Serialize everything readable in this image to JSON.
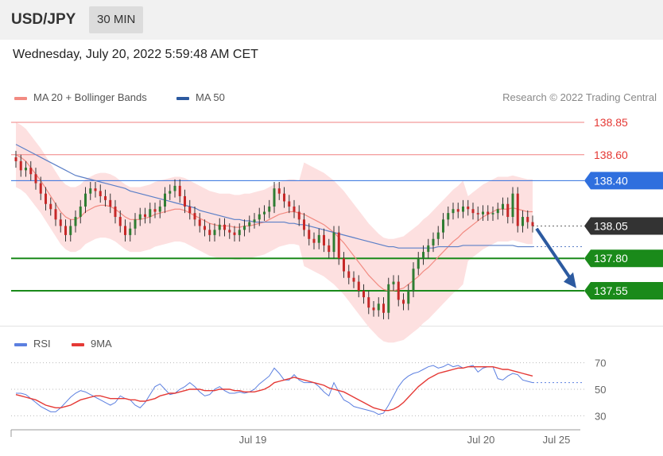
{
  "header": {
    "symbol": "USD/JPY",
    "timeframe": "30 MIN"
  },
  "timestamp": "Wednesday, July 20, 2022 5:59:48 AM CET",
  "legend": {
    "ma20": "MA 20 + Bollinger Bands",
    "ma50": "MA 50",
    "rsi": "RSI",
    "rsi_ma": "9MA"
  },
  "credit": "Research © 2022 Trading Central",
  "colors": {
    "resistance": "#f08080",
    "pivot": "#2f6fde",
    "support": "#1a8a1a",
    "last": "#333333",
    "bull": "#2e7d32",
    "bear": "#c62828",
    "ma20": "#f28b82",
    "ma50": "#5b7fc7",
    "band": "#fde0e0",
    "arrow": "#2c5aa0"
  },
  "chart_data": [
    {
      "type": "candlestick",
      "title": "USD/JPY 30 MIN",
      "ylim": [
        137.2,
        138.95
      ],
      "x_ticks": [
        "Jul 19",
        "Jul 20",
        "Jul 25"
      ],
      "levels": [
        {
          "value": 138.85,
          "label": "138.85",
          "kind": "resistance"
        },
        {
          "value": 138.6,
          "label": "138.60",
          "kind": "resistance"
        },
        {
          "value": 138.4,
          "label": "138.40",
          "kind": "pivot"
        },
        {
          "value": 138.05,
          "label": "138.05",
          "kind": "last"
        },
        {
          "value": 137.8,
          "label": "137.80",
          "kind": "support"
        },
        {
          "value": 137.55,
          "label": "137.55",
          "kind": "support"
        }
      ],
      "close": [
        138.55,
        138.48,
        138.5,
        138.45,
        138.38,
        138.3,
        138.22,
        138.18,
        138.1,
        138.05,
        137.98,
        138.05,
        138.12,
        138.2,
        138.3,
        138.34,
        138.32,
        138.28,
        138.25,
        138.2,
        138.12,
        138.05,
        137.98,
        138.03,
        138.1,
        138.14,
        138.12,
        138.18,
        138.16,
        138.2,
        138.3,
        138.32,
        138.36,
        138.28,
        138.2,
        138.15,
        138.1,
        138.05,
        138.02,
        137.98,
        138.02,
        138.06,
        138.02,
        138.0,
        137.98,
        138.02,
        138.05,
        138.08,
        138.1,
        138.14,
        138.16,
        138.2,
        138.34,
        138.3,
        138.24,
        138.2,
        138.16,
        138.1,
        138.02,
        137.95,
        137.92,
        137.98,
        137.9,
        137.85,
        138.0,
        137.8,
        137.7,
        137.65,
        137.62,
        137.55,
        137.5,
        137.42,
        137.4,
        137.45,
        137.38,
        137.6,
        137.62,
        137.48,
        137.45,
        137.55,
        137.72,
        137.8,
        137.85,
        137.9,
        137.95,
        138.0,
        138.1,
        138.15,
        138.18,
        138.16,
        138.2,
        138.18,
        138.15,
        138.14,
        138.16,
        138.14,
        138.15,
        138.18,
        138.22,
        138.12,
        138.3,
        138.05,
        138.12,
        138.08,
        138.05
      ],
      "ma20": [
        138.6,
        138.58,
        138.55,
        138.5,
        138.45,
        138.4,
        138.34,
        138.28,
        138.22,
        138.16,
        138.12,
        138.1,
        138.1,
        138.12,
        138.16,
        138.18,
        138.2,
        138.21,
        138.21,
        138.2,
        138.18,
        138.15,
        138.12,
        138.1,
        138.1,
        138.1,
        138.11,
        138.12,
        138.14,
        138.15,
        138.16,
        138.17,
        138.18,
        138.18,
        138.17,
        138.15,
        138.13,
        138.11,
        138.09,
        138.07,
        138.06,
        138.05,
        138.05,
        138.05,
        138.04,
        138.04,
        138.05,
        138.05,
        138.06,
        138.07,
        138.08,
        138.1,
        138.12,
        138.14,
        138.15,
        138.16,
        138.16,
        138.15,
        138.14,
        138.12,
        138.1,
        138.08,
        138.06,
        138.03,
        138.0,
        137.96,
        137.92,
        137.87,
        137.82,
        137.77,
        137.72,
        137.67,
        137.63,
        137.59,
        137.56,
        137.55,
        137.55,
        137.56,
        137.57,
        137.6,
        137.63,
        137.66,
        137.7,
        137.73,
        137.77,
        137.81,
        137.85,
        137.89,
        137.93,
        137.96,
        138.0,
        138.03,
        138.06,
        138.09,
        138.12,
        138.14,
        138.16,
        138.18,
        138.18,
        138.18,
        138.19,
        138.18,
        138.17,
        138.16,
        138.16
      ],
      "ma50": [
        138.68,
        138.66,
        138.64,
        138.62,
        138.6,
        138.58,
        138.56,
        138.54,
        138.52,
        138.5,
        138.48,
        138.46,
        138.44,
        138.43,
        138.42,
        138.41,
        138.4,
        138.39,
        138.38,
        138.37,
        138.36,
        138.35,
        138.34,
        138.32,
        138.31,
        138.3,
        138.29,
        138.28,
        138.27,
        138.26,
        138.25,
        138.24,
        138.23,
        138.22,
        138.21,
        138.2,
        138.19,
        138.17,
        138.16,
        138.15,
        138.14,
        138.13,
        138.12,
        138.11,
        138.1,
        138.1,
        138.09,
        138.09,
        138.08,
        138.08,
        138.08,
        138.08,
        138.08,
        138.08,
        138.08,
        138.07,
        138.07,
        138.06,
        138.06,
        138.05,
        138.04,
        138.03,
        138.02,
        138.01,
        138.0,
        137.99,
        137.98,
        137.97,
        137.96,
        137.95,
        137.94,
        137.93,
        137.92,
        137.91,
        137.9,
        137.89,
        137.89,
        137.88,
        137.88,
        137.88,
        137.88,
        137.88,
        137.88,
        137.88,
        137.88,
        137.89,
        137.89,
        137.89,
        137.89,
        137.89,
        137.9,
        137.9,
        137.9,
        137.9,
        137.9,
        137.9,
        137.9,
        137.9,
        137.9,
        137.9,
        137.9,
        137.89,
        137.89,
        137.89,
        137.89
      ]
    },
    {
      "type": "line",
      "title": "RSI",
      "ylim": [
        20,
        80
      ],
      "y_ticks": [
        70,
        50,
        30
      ],
      "series": [
        {
          "name": "RSI",
          "values": [
            47,
            47,
            46,
            43,
            40,
            37,
            35,
            33,
            33,
            36,
            40,
            44,
            47,
            49,
            48,
            46,
            44,
            42,
            40,
            38,
            40,
            45,
            43,
            42,
            38,
            36,
            40,
            46,
            52,
            54,
            50,
            46,
            47,
            50,
            52,
            55,
            52,
            48,
            45,
            46,
            50,
            52,
            49,
            47,
            47,
            48,
            47,
            48,
            50,
            54,
            57,
            60,
            66,
            62,
            57,
            57,
            61,
            57,
            55,
            55,
            55,
            52,
            48,
            45,
            55,
            48,
            42,
            40,
            37,
            36,
            35,
            34,
            33,
            31,
            32,
            38,
            45,
            52,
            57,
            60,
            62,
            63,
            65,
            67,
            68,
            66,
            67,
            69,
            67,
            68,
            66,
            67,
            68,
            63,
            66,
            67,
            67,
            58,
            57,
            60,
            62,
            61,
            57,
            56,
            55
          ]
        },
        {
          "name": "9MA",
          "values": [
            46,
            45,
            44,
            43,
            42,
            40,
            38,
            37,
            36,
            36,
            37,
            38,
            40,
            42,
            43,
            44,
            45,
            45,
            44,
            43,
            43,
            43,
            43,
            42,
            42,
            41,
            41,
            42,
            43,
            45,
            46,
            47,
            47,
            48,
            49,
            50,
            50,
            50,
            49,
            49,
            49,
            50,
            50,
            50,
            49,
            49,
            48,
            48,
            48,
            49,
            50,
            52,
            55,
            56,
            57,
            58,
            59,
            58,
            57,
            56,
            55,
            54,
            53,
            51,
            50,
            49,
            48,
            46,
            44,
            42,
            40,
            38,
            36,
            35,
            34,
            34,
            35,
            37,
            40,
            44,
            48,
            52,
            55,
            58,
            60,
            62,
            63,
            64,
            65,
            66,
            66,
            67,
            67,
            67,
            67,
            67,
            67,
            66,
            65,
            65,
            64,
            63,
            62,
            61,
            60
          ]
        }
      ]
    }
  ]
}
